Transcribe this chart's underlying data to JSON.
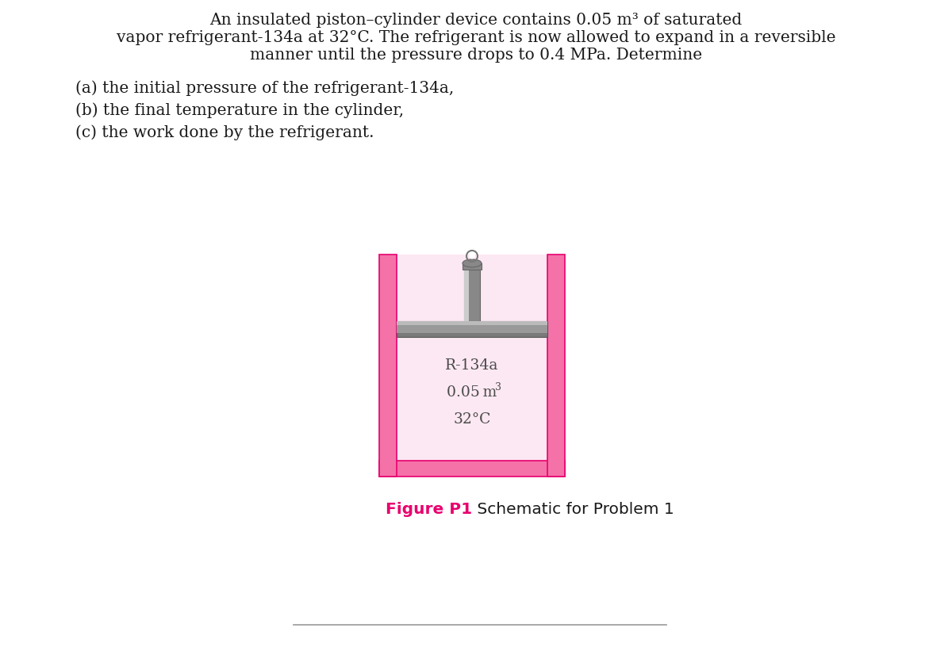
{
  "bg_color": "#ffffff",
  "para_line1": "An insulated piston–cylinder device contains 0.05 m³ of saturated",
  "para_line2": "vapor refrigerant-134a at 32°C. The refrigerant is now allowed to expand in a reversible",
  "para_line3": "manner until the pressure drops to 0.4 MPa. Determine",
  "list_items": [
    "(a) the initial pressure of the refrigerant-134a,",
    "(b) the final temperature in the cylinder,",
    "(c) the work done by the refrigerant."
  ],
  "figure_label_colored": "Figure P1",
  "figure_label_rest": " Schematic for Problem 1",
  "figure_label_color": "#e8006e",
  "cylinder_pink": "#f472a8",
  "cylinder_pink_dark": "#e8006e",
  "cylinder_inner_bg": "#fce8f2",
  "piston_dark": "#7a7a7a",
  "piston_mid": "#999999",
  "piston_light": "#bbbbbb",
  "rod_dark": "#888888",
  "rod_light": "#cccccc",
  "label_line1": "R-134a",
  "label_line2": "0.05 m",
  "label_line2_super": "3",
  "label_line3": "32°C",
  "label_color": "#4a4a4a",
  "text_color": "#1a1a1a",
  "bottom_line_color": "#999999",
  "text_fontsize": 14.5,
  "list_fontsize": 14.5,
  "label_fontsize": 13.5,
  "caption_fontsize": 14.5
}
